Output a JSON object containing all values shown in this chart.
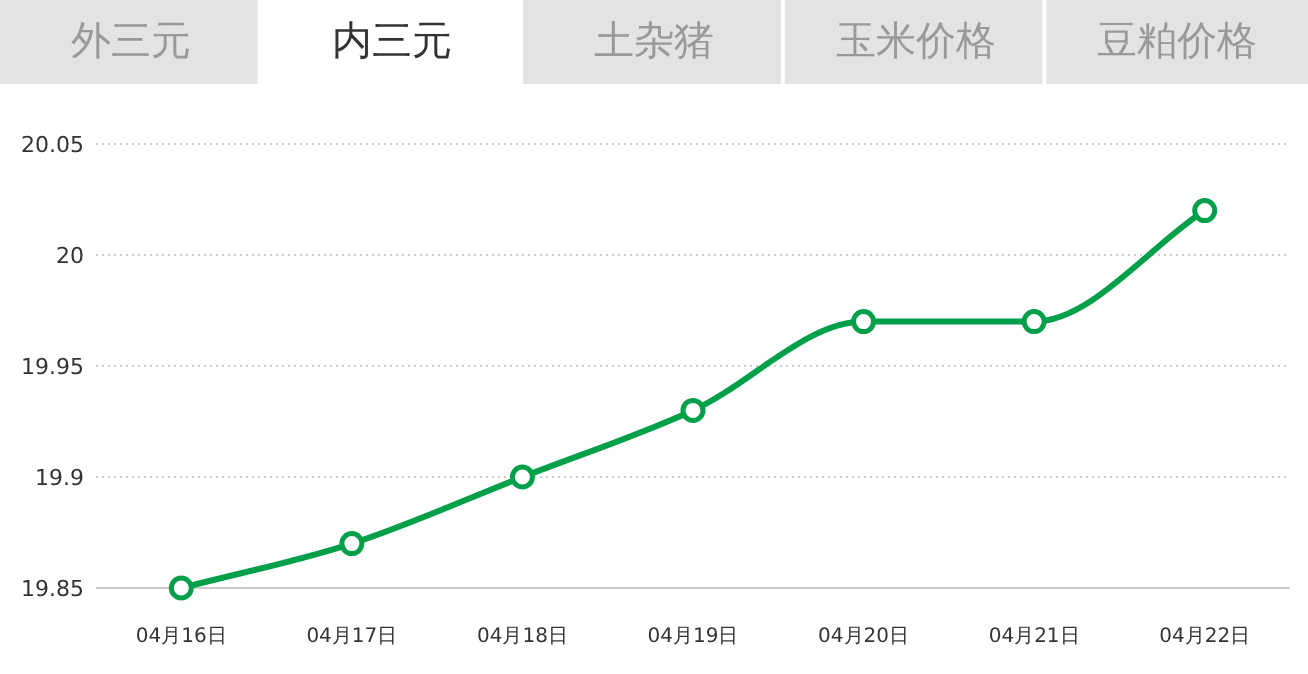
{
  "chart_data": {
    "type": "line",
    "title": "内三元",
    "annotations": [
      "外三元",
      "土杂猪",
      "玉米价格",
      "豆粕价格"
    ],
    "categories": [
      "04月16日",
      "04月17日",
      "04月18日",
      "04月19日",
      "04月20日",
      "04月21日",
      "04月22日"
    ],
    "series": [
      {
        "color": "#00a04a",
        "values": [
          19.85,
          19.87,
          19.9,
          19.93,
          19.97,
          19.97,
          20.02
        ]
      }
    ],
    "ylim": [
      19.85,
      20.05
    ],
    "yticks": [
      19.85,
      19.9,
      19.95,
      20,
      20.05
    ],
    "grid": "y",
    "marker": "circle",
    "line_style": "solid"
  }
}
